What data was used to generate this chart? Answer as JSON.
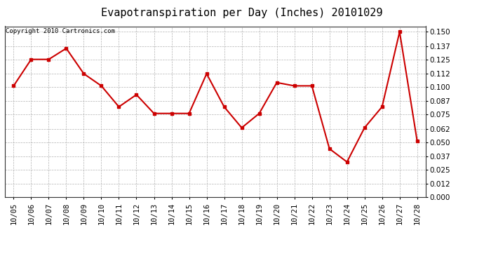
{
  "title": "Evapotranspiration per Day (Inches) 20101029",
  "copyright": "Copyright 2010 Cartronics.com",
  "dates": [
    "10/05",
    "10/06",
    "10/07",
    "10/08",
    "10/09",
    "10/10",
    "10/11",
    "10/12",
    "10/13",
    "10/14",
    "10/15",
    "10/16",
    "10/17",
    "10/18",
    "10/19",
    "10/20",
    "10/21",
    "10/22",
    "10/23",
    "10/24",
    "10/25",
    "10/26",
    "10/27",
    "10/28"
  ],
  "values": [
    0.101,
    0.125,
    0.125,
    0.135,
    0.112,
    0.101,
    0.082,
    0.093,
    0.076,
    0.076,
    0.076,
    0.112,
    0.082,
    0.063,
    0.076,
    0.104,
    0.101,
    0.101,
    0.044,
    0.032,
    0.063,
    0.082,
    0.15,
    0.051
  ],
  "line_color": "#cc0000",
  "marker": "s",
  "markersize": 3,
  "linewidth": 1.5,
  "ylim": [
    0.0,
    0.155
  ],
  "yticks": [
    0.0,
    0.012,
    0.025,
    0.037,
    0.05,
    0.062,
    0.075,
    0.087,
    0.1,
    0.112,
    0.125,
    0.137,
    0.15
  ],
  "background_color": "#ffffff",
  "grid_color": "#aaaaaa",
  "title_fontsize": 11,
  "tick_fontsize": 7.5,
  "copyright_fontsize": 6.5
}
